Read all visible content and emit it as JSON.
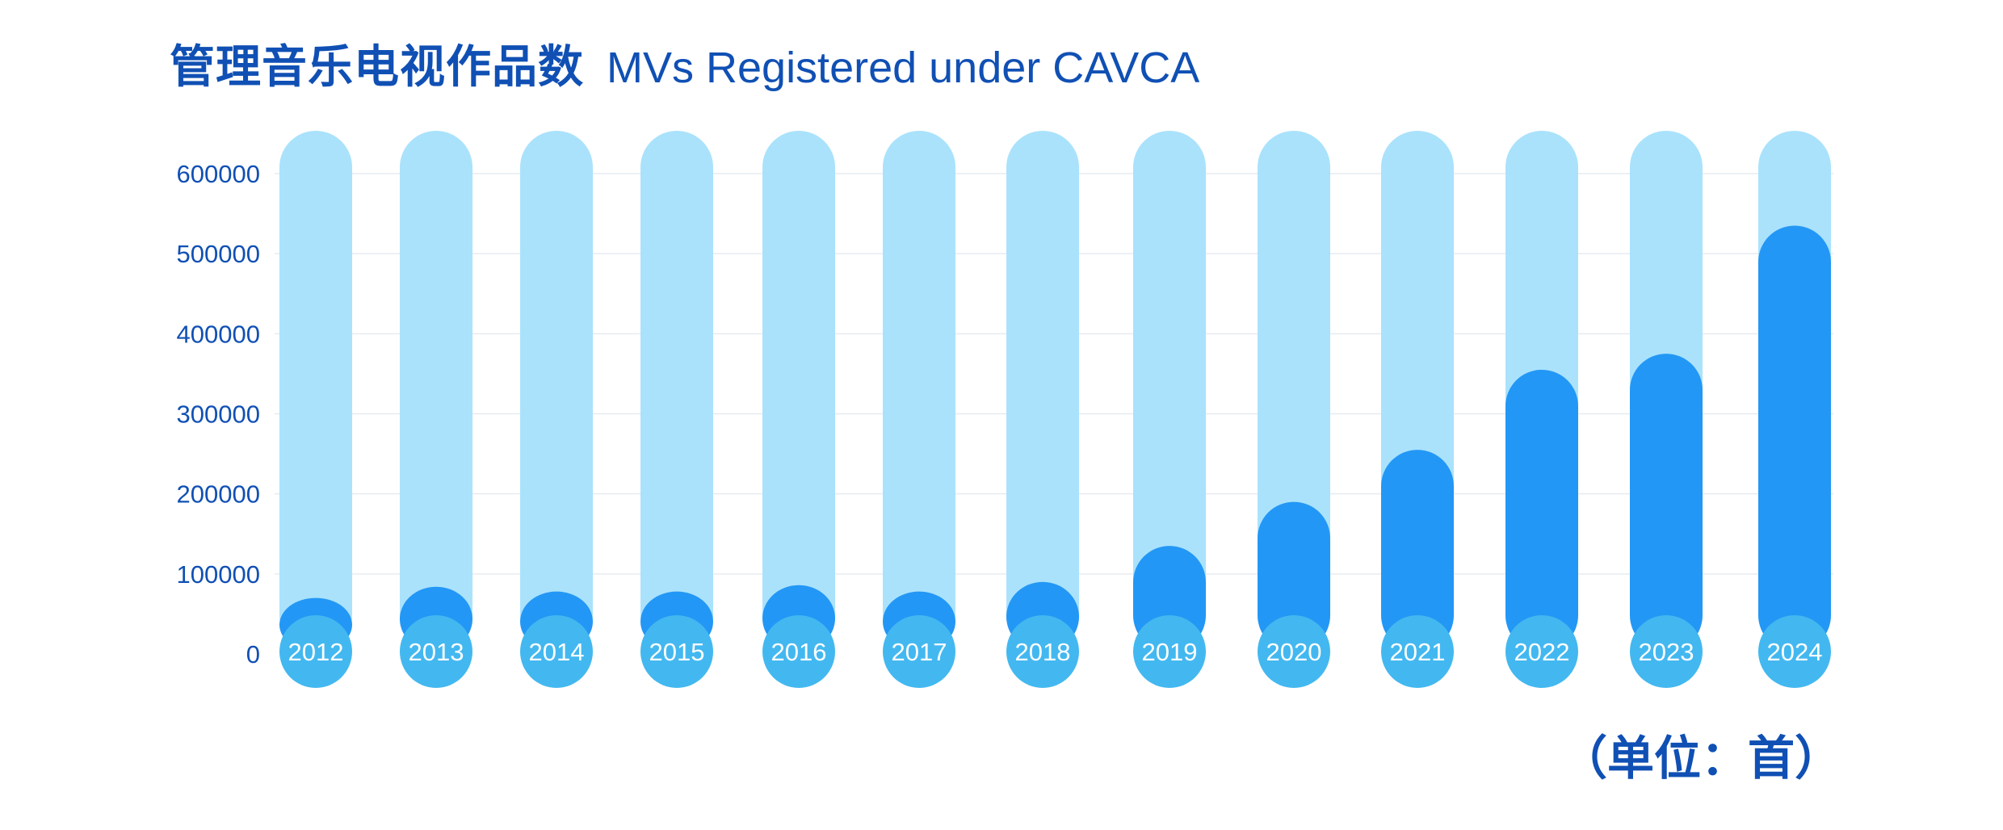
{
  "chart_data": {
    "type": "bar",
    "title_cn": "管理音乐电视作品数",
    "title_en": "MVs Registered under CAVCA",
    "unit_note": "（单位：首）",
    "categories": [
      "2012",
      "2013",
      "2014",
      "2015",
      "2016",
      "2017",
      "2018",
      "2019",
      "2020",
      "2021",
      "2022",
      "2023",
      "2024"
    ],
    "values": [
      70000,
      84000,
      78000,
      78000,
      86000,
      78000,
      90000,
      135000,
      190000,
      255000,
      355000,
      375000,
      535000
    ],
    "yticks": [
      "600000",
      "500000",
      "400000",
      "300000",
      "200000",
      "100000",
      "0"
    ],
    "ylim": [
      0,
      600000
    ],
    "grid": true,
    "colors": {
      "track": "#aae2fc",
      "bar": "#2397f5",
      "label_circle": "#43b8f0",
      "text": "#1050b4",
      "grid": "#e6ecf2"
    }
  }
}
